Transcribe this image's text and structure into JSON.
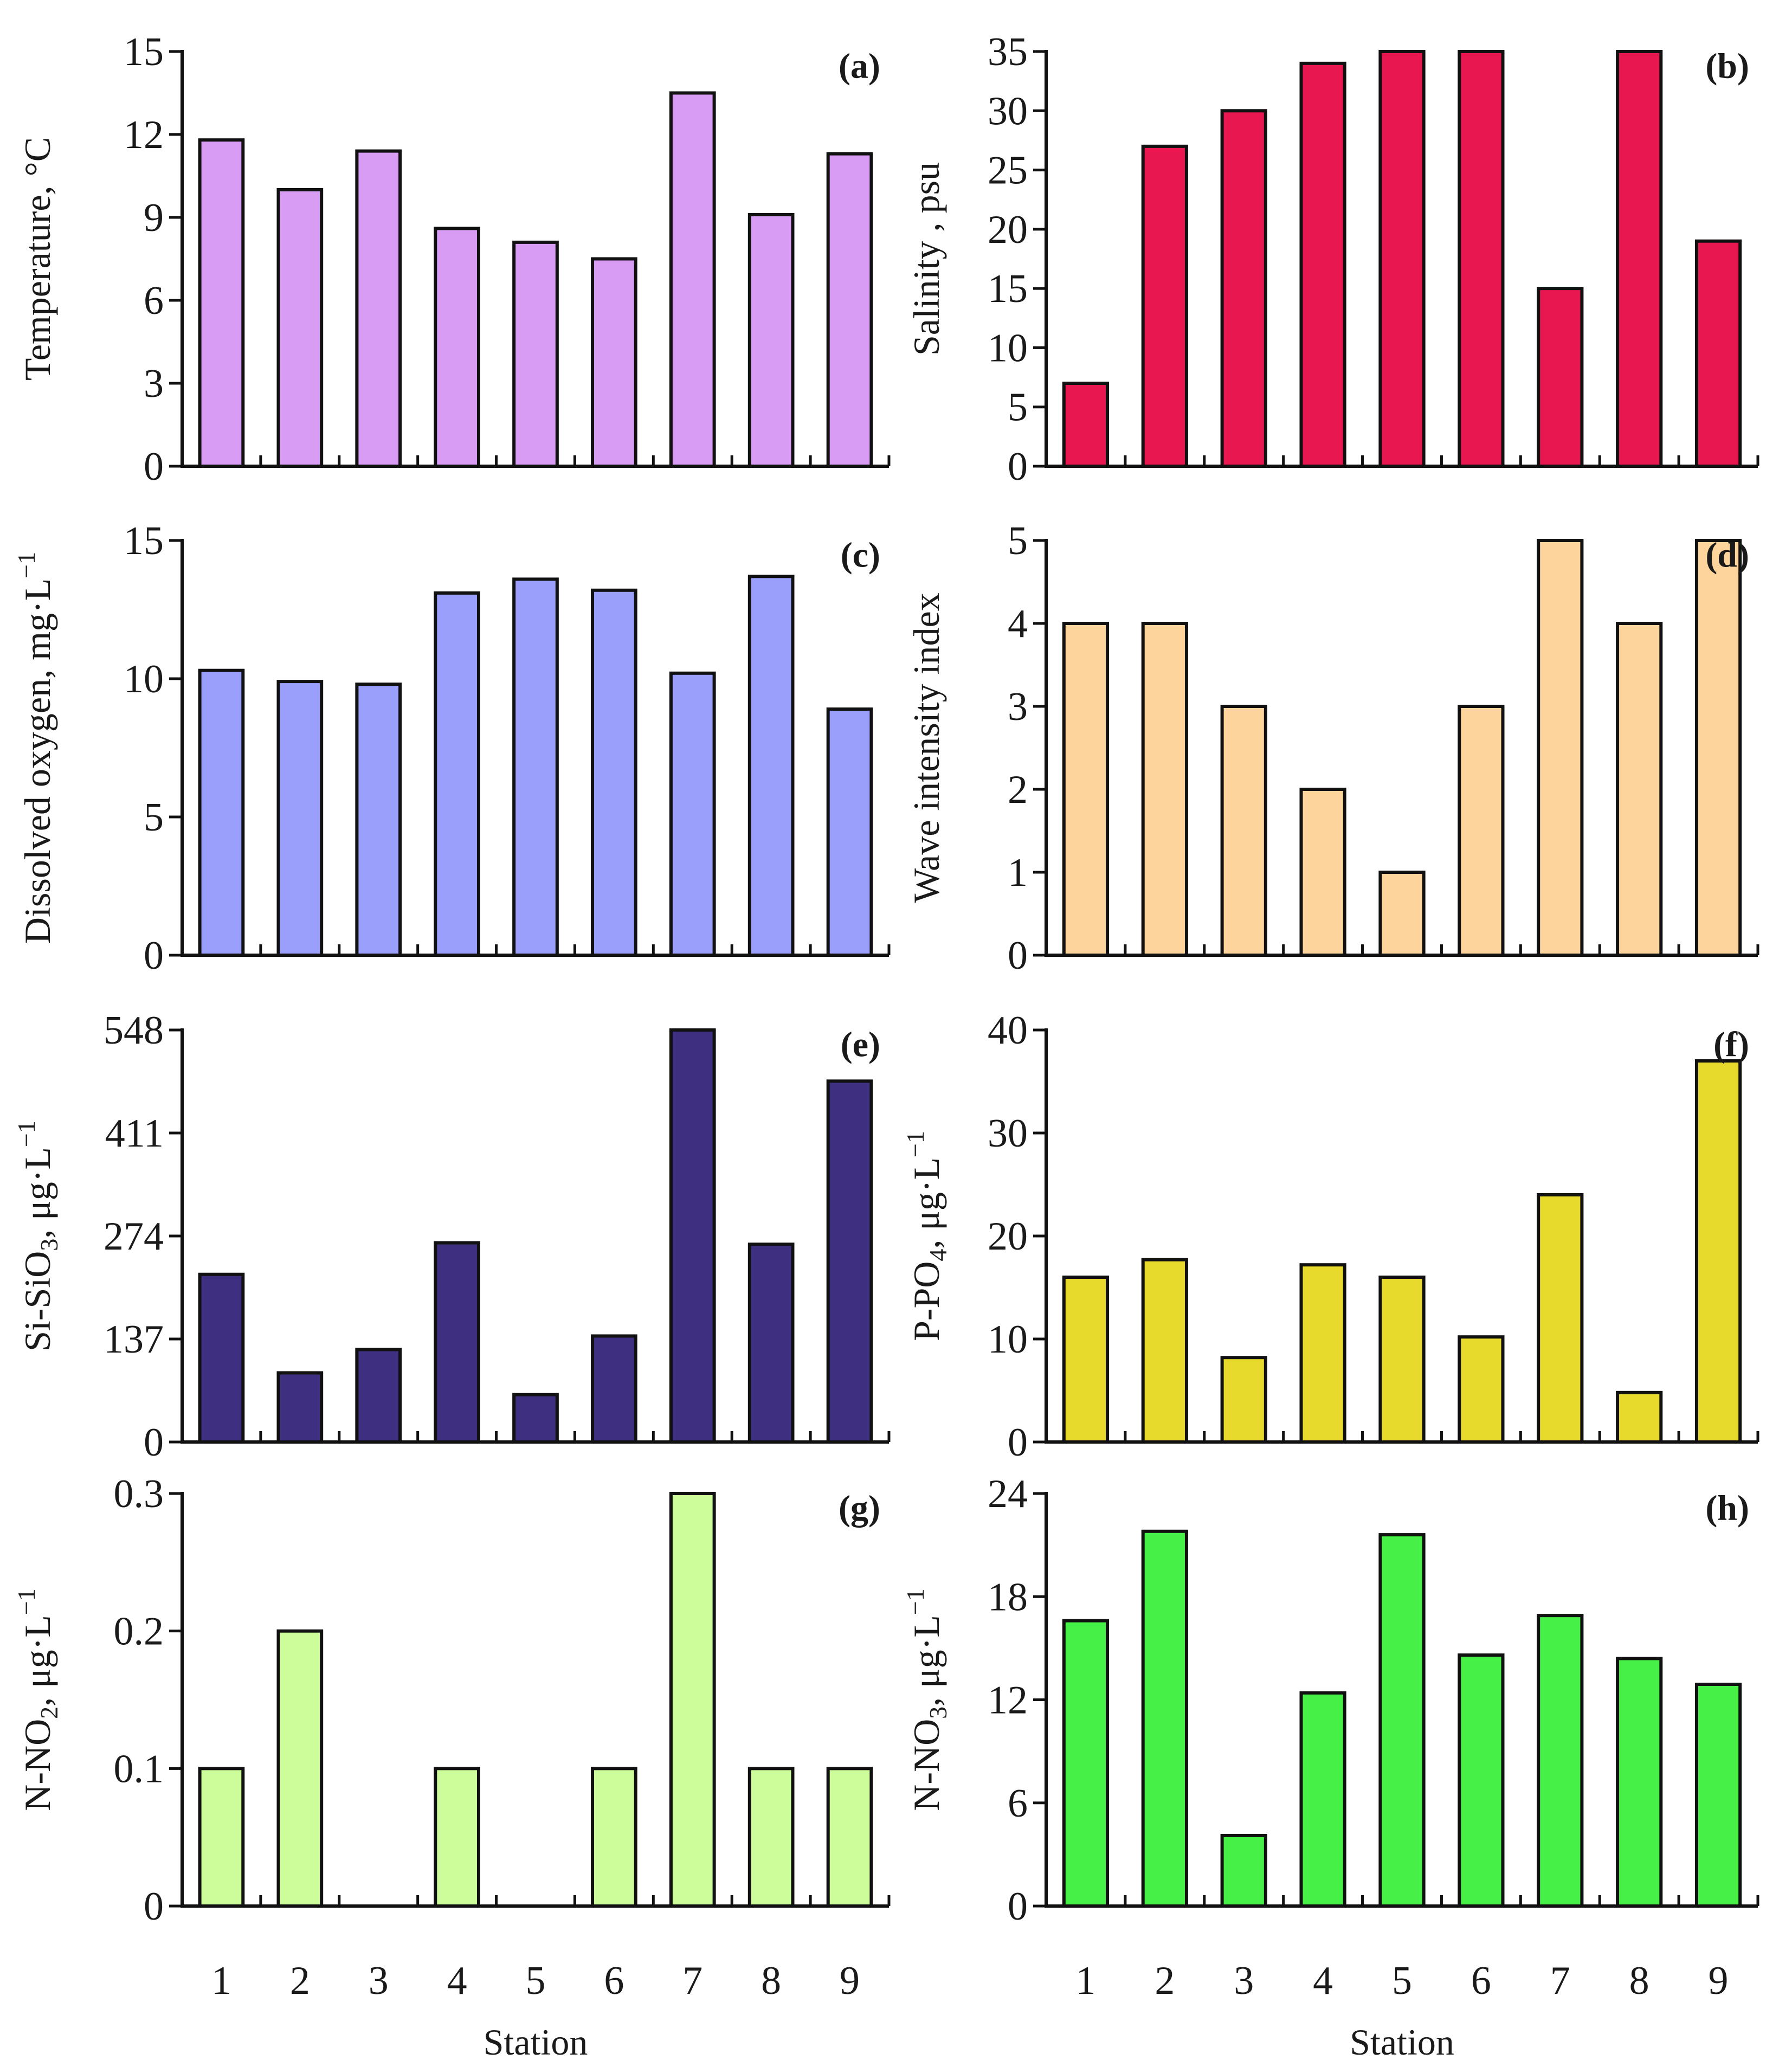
{
  "chart_data": [
    {
      "type": "bar",
      "panel": "(a)",
      "ylabel": "Temperature, °C",
      "categories": [
        "1",
        "2",
        "3",
        "4",
        "5",
        "6",
        "7",
        "8",
        "9"
      ],
      "values": [
        11.8,
        10.0,
        11.4,
        8.6,
        8.1,
        7.5,
        13.5,
        9.1,
        11.3
      ],
      "ylim": [
        0,
        15
      ],
      "yticks": [
        0,
        3,
        6,
        9,
        12,
        15
      ],
      "color": "#d89cf5"
    },
    {
      "type": "bar",
      "panel": "(b)",
      "ylabel": "Salinity , psu",
      "categories": [
        "1",
        "2",
        "3",
        "4",
        "5",
        "6",
        "7",
        "8",
        "9"
      ],
      "values": [
        7,
        27,
        30,
        34,
        35,
        35,
        15,
        35,
        19
      ],
      "ylim": [
        0,
        35
      ],
      "yticks": [
        0,
        5,
        10,
        15,
        20,
        25,
        30,
        35
      ],
      "color": "#e8174f"
    },
    {
      "type": "bar",
      "panel": "(c)",
      "ylabel": "Dissolved oxygen, mg·L",
      "ylabel_sup": "−1",
      "categories": [
        "1",
        "2",
        "3",
        "4",
        "5",
        "6",
        "7",
        "8",
        "9"
      ],
      "values": [
        10.3,
        9.9,
        9.8,
        13.1,
        13.6,
        13.2,
        10.2,
        13.7,
        8.9
      ],
      "ylim": [
        0,
        15
      ],
      "yticks": [
        0,
        5,
        10,
        15
      ],
      "color": "#9a9ffc"
    },
    {
      "type": "bar",
      "panel": "(d)",
      "ylabel": "Wave intensity index",
      "categories": [
        "1",
        "2",
        "3",
        "4",
        "5",
        "6",
        "7",
        "8",
        "9"
      ],
      "values": [
        4,
        4,
        3,
        2,
        1,
        3,
        5,
        4,
        5
      ],
      "ylim": [
        0,
        5
      ],
      "yticks": [
        0,
        1,
        2,
        3,
        4,
        5
      ],
      "color": "#fdd49b"
    },
    {
      "type": "bar",
      "panel": "(e)",
      "ylabel": "Si-SiO",
      "ylabel_sub": "3",
      "ylabel_tail": ", μg·L",
      "ylabel_sup": "−1",
      "categories": [
        "1",
        "2",
        "3",
        "4",
        "5",
        "6",
        "7",
        "8",
        "9"
      ],
      "values": [
        223,
        92,
        123,
        265,
        63,
        141,
        548,
        263,
        480
      ],
      "ylim": [
        0,
        548
      ],
      "yticks": [
        0,
        137,
        274,
        411,
        548
      ],
      "color": "#3f2f80"
    },
    {
      "type": "bar",
      "panel": "(f)",
      "ylabel": "P-PO",
      "ylabel_sub": "4",
      "ylabel_tail": ", μg·L",
      "ylabel_sup": "−1",
      "categories": [
        "1",
        "2",
        "3",
        "4",
        "5",
        "6",
        "7",
        "8",
        "9"
      ],
      "values": [
        16,
        17.7,
        8.2,
        17.2,
        16,
        10.2,
        24,
        4.8,
        37
      ],
      "ylim": [
        0,
        40
      ],
      "yticks": [
        0,
        10,
        20,
        30,
        40
      ],
      "color": "#e8d92d"
    },
    {
      "type": "bar",
      "panel": "(g)",
      "ylabel": "N-NO",
      "ylabel_sub": "2",
      "ylabel_tail": ", μg·L",
      "ylabel_sup": "−1",
      "xlabel": "Station",
      "categories": [
        "1",
        "2",
        "3",
        "4",
        "5",
        "6",
        "7",
        "8",
        "9"
      ],
      "values": [
        0.1,
        0.2,
        0,
        0.1,
        0,
        0.1,
        0.3,
        0.1,
        0.1
      ],
      "ylim": [
        0,
        0.3
      ],
      "yticks": [
        0,
        0.1,
        0.2,
        0.3
      ],
      "color": "#ccfd9a"
    },
    {
      "type": "bar",
      "panel": "(h)",
      "ylabel": "N-NO",
      "ylabel_sub": "3",
      "ylabel_tail": ", μg·L",
      "ylabel_sup": "−1",
      "xlabel": "Station",
      "categories": [
        "1",
        "2",
        "3",
        "4",
        "5",
        "6",
        "7",
        "8",
        "9"
      ],
      "values": [
        16.6,
        21.8,
        4.1,
        12.4,
        21.6,
        14.6,
        16.9,
        14.4,
        12.9
      ],
      "ylim": [
        0,
        24
      ],
      "yticks": [
        0,
        6,
        12,
        18,
        24
      ],
      "color": "#46f046"
    }
  ]
}
